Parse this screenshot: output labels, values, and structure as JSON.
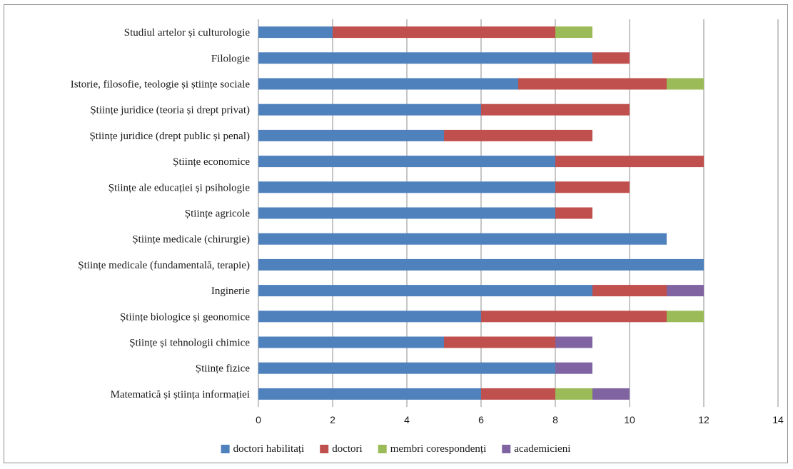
{
  "chart_data": {
    "type": "bar",
    "orientation": "horizontal",
    "stacked": true,
    "title": "",
    "xlabel": "",
    "ylabel": "",
    "xlim": [
      0,
      14
    ],
    "xticks": [
      0,
      2,
      4,
      6,
      8,
      10,
      12,
      14
    ],
    "grid": "vertical",
    "legend_position": "bottom",
    "categories": [
      "Studiul artelor și culturologie",
      "Filologie",
      "Istorie, filosofie, teologie și științe sociale",
      "Științe juridice (teoria și drept privat)",
      "Științe juridice (drept public și penal)",
      "Științe economice",
      "Științe ale educației și psihologie",
      "Științe agricole",
      "Științe medicale (chirurgie)",
      "Științe medicale (fundamentală, terapie)",
      "Inginerie",
      "Științe biologice și geonomice",
      "Științe și tehnologii chimice",
      "Științe fizice",
      "Matematică și știința informației"
    ],
    "series": [
      {
        "name": "doctori habilitați",
        "color": "#4f81bd",
        "values": [
          2,
          9,
          7,
          6,
          5,
          8,
          8,
          8,
          11,
          12,
          9,
          6,
          5,
          8,
          6
        ]
      },
      {
        "name": "doctori",
        "color": "#c0504d",
        "values": [
          6,
          1,
          4,
          4,
          4,
          4,
          2,
          1,
          0,
          0,
          2,
          5,
          3,
          0,
          2
        ]
      },
      {
        "name": "membri corespondenți",
        "color": "#9bbb59",
        "values": [
          1,
          0,
          1,
          0,
          0,
          0,
          0,
          0,
          0,
          0,
          0,
          1,
          0,
          0,
          1
        ]
      },
      {
        "name": "academicieni",
        "color": "#8064a2",
        "values": [
          0,
          0,
          0,
          0,
          0,
          0,
          0,
          0,
          0,
          0,
          1,
          0,
          1,
          1,
          1
        ]
      }
    ]
  }
}
